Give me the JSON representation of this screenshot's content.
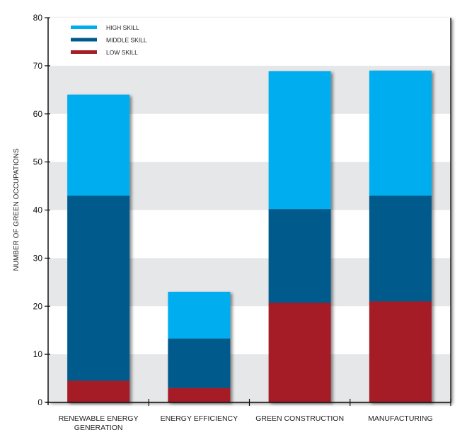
{
  "chart_data": {
    "type": "bar",
    "stacked": true,
    "title": "",
    "xlabel": "",
    "ylabel": "NUMBER OF GREEN OCCUPATIONS",
    "ylim": [
      0,
      80
    ],
    "yticks": [
      0,
      10,
      20,
      30,
      40,
      50,
      60,
      70,
      80
    ],
    "grid": "alternating horizontal bands",
    "legend_position": "top-left",
    "categories": [
      "RENEWABLE ENERGY GENERATION",
      "ENERGY EFFICIENCY",
      "GREEN CONSTRUCTION",
      "MANUFACTURING"
    ],
    "category_lines": [
      [
        "RENEWABLE ENERGY",
        "GENERATION"
      ],
      [
        "ENERGY EFFICIENCY"
      ],
      [
        "GREEN CONSTRUCTION"
      ],
      [
        "MANUFACTURING"
      ]
    ],
    "series": [
      {
        "name": "LOW SKILL",
        "color": "#A51E25",
        "values": [
          4.5,
          3,
          20.7,
          21
        ]
      },
      {
        "name": "MIDDLE SKILL",
        "color": "#005A8C",
        "values": [
          38.5,
          10.3,
          19.5,
          22
        ]
      },
      {
        "name": "HIGH SKILL",
        "color": "#00AEEF",
        "values": [
          21,
          9.7,
          28.7,
          26
        ]
      }
    ],
    "legend_order": [
      "HIGH SKILL",
      "MIDDLE SKILL",
      "LOW SKILL"
    ],
    "band_color": "#E6E7E9"
  }
}
